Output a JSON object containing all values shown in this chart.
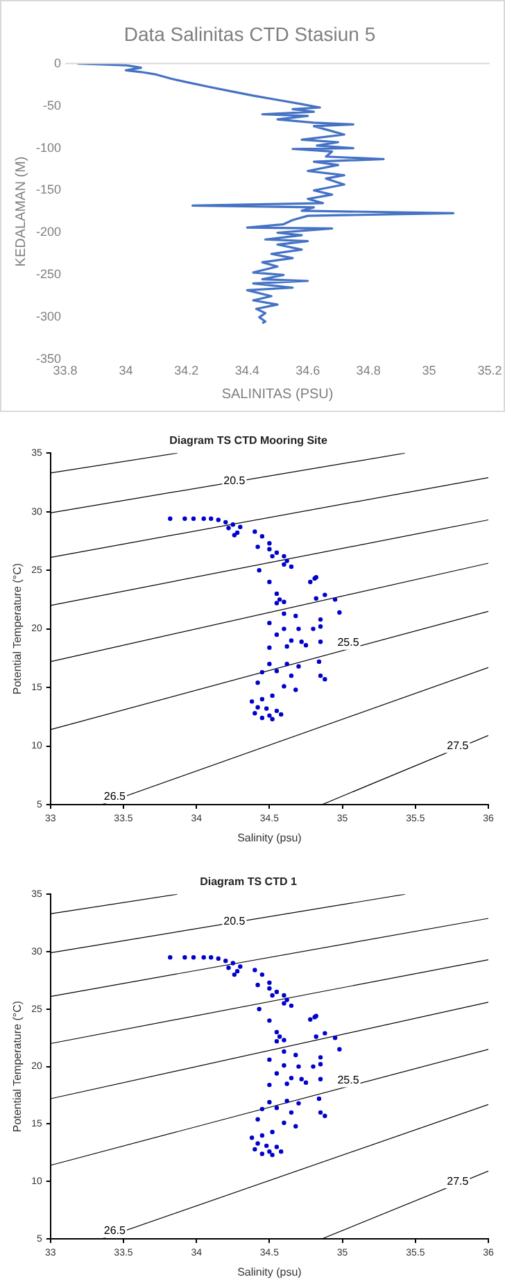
{
  "chart_data": [
    {
      "type": "line",
      "title": "Data Salinitas CTD Stasiun 5",
      "xlabel": "SALINITAS (PSU)",
      "ylabel": "KEDALAMAN (M)",
      "color": "#4472c4",
      "grid": false,
      "legend": false,
      "marker": "none",
      "x": [
        33.84,
        34.0,
        34.05,
        34.0,
        34.05,
        34.1,
        34.15,
        34.2,
        34.28,
        34.35,
        34.42,
        34.5,
        34.58,
        34.64,
        34.55,
        34.62,
        34.45,
        34.6,
        34.5,
        34.62,
        34.75,
        34.62,
        34.68,
        34.72,
        34.58,
        34.7,
        34.63,
        34.75,
        34.55,
        34.68,
        34.66,
        34.85,
        34.62,
        34.7,
        34.6,
        34.72,
        34.66,
        34.72,
        34.62,
        34.68,
        34.6,
        34.65,
        34.22,
        34.62,
        34.58,
        35.08,
        34.6,
        34.55,
        34.52,
        34.4,
        34.68,
        34.5,
        34.58,
        34.46,
        34.6,
        34.5,
        34.58,
        34.48,
        34.55,
        34.45,
        34.5,
        34.42,
        34.52,
        34.45,
        34.6,
        34.42,
        34.55,
        34.4,
        34.48,
        34.42,
        34.5,
        34.43,
        34.46,
        34.44,
        34.46,
        34.45
      ],
      "values": [
        0,
        -2,
        -5,
        -8,
        -10,
        -13,
        -18,
        -22,
        -28,
        -33,
        -38,
        -43,
        -48,
        -52,
        -54,
        -57,
        -60,
        -62,
        -66,
        -70,
        -72,
        -74,
        -80,
        -84,
        -90,
        -93,
        -97,
        -100,
        -101,
        -104,
        -110,
        -113,
        -116,
        -120,
        -127,
        -132,
        -136,
        -143,
        -150,
        -155,
        -160,
        -165,
        -168,
        -170,
        -174,
        -177,
        -180,
        -185,
        -190,
        -194,
        -195,
        -200,
        -203,
        -208,
        -210,
        -214,
        -220,
        -225,
        -230,
        -235,
        -240,
        -247,
        -250,
        -255,
        -257,
        -260,
        -265,
        -268,
        -275,
        -280,
        -285,
        -290,
        -295,
        -300,
        -305,
        -307
      ],
      "xlim": [
        33.8,
        35.2
      ],
      "xticks": [
        33.8,
        34,
        34.2,
        34.4,
        34.6,
        34.8,
        35,
        35.2
      ],
      "ylim": [
        -350,
        0
      ],
      "yticks": [
        -350,
        -300,
        -250,
        -200,
        -150,
        -100,
        -50,
        0
      ],
      "ref_lines": [
        {
          "axis": "y",
          "value": 0,
          "color": "#d9d9d9"
        }
      ]
    },
    {
      "type": "scatter",
      "title": "Diagram TS CTD Mooring Site",
      "xlabel": "Salinity (psu)",
      "ylabel": "Potential Temperature (°C)",
      "grid": false,
      "legend": false,
      "xlim": [
        33,
        36
      ],
      "xticks": [
        33,
        33.5,
        34,
        34.5,
        35,
        35.5,
        36
      ],
      "ylim": [
        5,
        35
      ],
      "yticks": [
        5,
        10,
        15,
        20,
        25,
        30,
        35
      ],
      "series": [
        {
          "type": "scatter",
          "marker": "circle",
          "color": "#0000cc",
          "x": [
            33.82,
            33.92,
            33.98,
            34.05,
            34.1,
            34.15,
            34.2,
            34.25,
            34.3,
            34.22,
            34.28,
            34.26,
            34.4,
            34.45,
            34.5,
            34.42,
            34.5,
            34.55,
            34.52,
            34.6,
            34.62,
            34.65,
            34.6,
            34.43,
            34.5,
            34.82,
            34.78,
            34.81,
            34.55,
            34.57,
            34.55,
            34.6,
            34.82,
            34.88,
            34.95,
            34.98,
            34.6,
            34.68,
            34.5,
            34.85,
            34.85,
            34.6,
            34.7,
            34.8,
            34.55,
            34.65,
            34.72,
            34.75,
            34.85,
            34.5,
            34.62,
            34.84,
            34.5,
            34.62,
            34.7,
            34.45,
            34.55,
            34.65,
            34.85,
            34.88,
            34.42,
            34.6,
            34.68,
            34.52,
            34.45,
            34.38,
            34.42,
            34.48,
            34.55,
            34.4,
            34.5,
            34.58,
            34.45,
            34.52
          ],
          "values": [
            29.4,
            29.4,
            29.4,
            29.4,
            29.4,
            29.3,
            29.1,
            28.9,
            28.7,
            28.6,
            28.2,
            28.0,
            28.3,
            27.9,
            27.3,
            27.0,
            26.8,
            26.5,
            26.2,
            26.2,
            25.8,
            25.3,
            25.5,
            25.0,
            24.0,
            24.4,
            24.0,
            24.3,
            23.0,
            22.5,
            22.2,
            22.3,
            22.6,
            22.9,
            22.5,
            21.4,
            21.3,
            21.1,
            20.5,
            20.8,
            20.2,
            20.0,
            20.0,
            20.0,
            19.5,
            19.0,
            18.9,
            18.6,
            18.9,
            18.4,
            18.5,
            17.2,
            17.0,
            17.0,
            16.8,
            16.3,
            16.4,
            16.0,
            16.0,
            15.7,
            15.4,
            15.1,
            14.8,
            14.3,
            14.0,
            13.8,
            13.3,
            13.2,
            13.0,
            12.8,
            12.6,
            12.7,
            12.4,
            12.3
          ]
        },
        {
          "type": "line",
          "marker": "none",
          "color": "#000000",
          "x": [
            33,
            33.87
          ],
          "values": [
            33.3,
            35
          ]
        },
        {
          "type": "line",
          "marker": "none",
          "color": "#000000",
          "x": [
            33,
            35.43
          ],
          "values": [
            29.9,
            35
          ]
        },
        {
          "type": "line",
          "marker": "none",
          "color": "#000000",
          "x": [
            33,
            36
          ],
          "values": [
            26.1,
            32.9
          ]
        },
        {
          "type": "line",
          "marker": "none",
          "color": "#000000",
          "x": [
            33,
            36
          ],
          "values": [
            22.0,
            29.3
          ]
        },
        {
          "type": "line",
          "marker": "none",
          "color": "#000000",
          "x": [
            33,
            36
          ],
          "values": [
            17.2,
            25.6
          ]
        },
        {
          "type": "line",
          "marker": "none",
          "color": "#000000",
          "x": [
            33,
            36
          ],
          "values": [
            11.4,
            21.5
          ]
        },
        {
          "type": "line",
          "marker": "none",
          "color": "#000000",
          "x": [
            33.35,
            36
          ],
          "values": [
            5,
            16.7
          ]
        },
        {
          "type": "line",
          "marker": "none",
          "color": "#000000",
          "x": [
            34.86,
            36
          ],
          "values": [
            5,
            10.9
          ]
        }
      ],
      "annotations": [
        {
          "text": "20.5",
          "x": 34.26,
          "y": 32.6
        },
        {
          "text": "25.5",
          "x": 35.04,
          "y": 18.8
        },
        {
          "text": "26.5",
          "x": 33.44,
          "y": 5.7
        },
        {
          "text": "27.5",
          "x": 35.79,
          "y": 10.0
        }
      ]
    },
    {
      "type": "scatter",
      "title": "Diagram TS CTD 1",
      "xlabel": "Salinity (psu)",
      "ylabel": "Potential Temperature (°C)",
      "grid": false,
      "legend": false,
      "xlim": [
        33,
        36
      ],
      "xticks": [
        33,
        33.5,
        34,
        34.5,
        35,
        35.5,
        36
      ],
      "ylim": [
        5,
        35
      ],
      "yticks": [
        5,
        10,
        15,
        20,
        25,
        30,
        35
      ],
      "series": [
        {
          "type": "scatter",
          "marker": "circle",
          "color": "#0000cc",
          "x": [
            33.82,
            33.92,
            33.98,
            34.05,
            34.1,
            34.15,
            34.2,
            34.25,
            34.3,
            34.22,
            34.28,
            34.26,
            34.4,
            34.45,
            34.5,
            34.42,
            34.5,
            34.55,
            34.52,
            34.6,
            34.62,
            34.65,
            34.6,
            34.43,
            34.5,
            34.82,
            34.78,
            34.81,
            34.55,
            34.57,
            34.55,
            34.6,
            34.82,
            34.88,
            34.95,
            34.98,
            34.6,
            34.68,
            34.5,
            34.85,
            34.85,
            34.6,
            34.7,
            34.8,
            34.55,
            34.65,
            34.72,
            34.75,
            34.85,
            34.5,
            34.62,
            34.84,
            34.5,
            34.62,
            34.7,
            34.45,
            34.55,
            34.65,
            34.85,
            34.88,
            34.42,
            34.6,
            34.68,
            34.52,
            34.45,
            34.38,
            34.42,
            34.48,
            34.55,
            34.4,
            34.5,
            34.58,
            34.45,
            34.52
          ],
          "values": [
            29.5,
            29.5,
            29.5,
            29.5,
            29.5,
            29.4,
            29.2,
            29.0,
            28.7,
            28.6,
            28.3,
            28.0,
            28.4,
            28.0,
            27.3,
            27.1,
            26.8,
            26.5,
            26.2,
            26.2,
            25.8,
            25.3,
            25.5,
            25.0,
            24.0,
            24.4,
            24.1,
            24.3,
            23.0,
            22.6,
            22.2,
            22.3,
            22.6,
            22.9,
            22.5,
            21.5,
            21.3,
            21.0,
            20.6,
            20.8,
            20.2,
            20.1,
            20.0,
            20.0,
            19.4,
            19.0,
            18.9,
            18.6,
            18.9,
            18.4,
            18.5,
            17.2,
            16.9,
            17.0,
            16.8,
            16.3,
            16.4,
            16.0,
            16.0,
            15.7,
            15.4,
            15.1,
            14.8,
            14.3,
            14.0,
            13.8,
            13.3,
            13.1,
            13.0,
            12.8,
            12.6,
            12.6,
            12.4,
            12.3
          ]
        },
        {
          "type": "line",
          "marker": "none",
          "color": "#000000",
          "x": [
            33,
            33.87
          ],
          "values": [
            33.3,
            35
          ]
        },
        {
          "type": "line",
          "marker": "none",
          "color": "#000000",
          "x": [
            33,
            35.43
          ],
          "values": [
            29.9,
            35
          ]
        },
        {
          "type": "line",
          "marker": "none",
          "color": "#000000",
          "x": [
            33,
            36
          ],
          "values": [
            26.1,
            32.9
          ]
        },
        {
          "type": "line",
          "marker": "none",
          "color": "#000000",
          "x": [
            33,
            36
          ],
          "values": [
            22.0,
            29.3
          ]
        },
        {
          "type": "line",
          "marker": "none",
          "color": "#000000",
          "x": [
            33,
            36
          ],
          "values": [
            17.2,
            25.6
          ]
        },
        {
          "type": "line",
          "marker": "none",
          "color": "#000000",
          "x": [
            33,
            36
          ],
          "values": [
            11.4,
            21.5
          ]
        },
        {
          "type": "line",
          "marker": "none",
          "color": "#000000",
          "x": [
            33.35,
            36
          ],
          "values": [
            5,
            16.7
          ]
        },
        {
          "type": "line",
          "marker": "none",
          "color": "#000000",
          "x": [
            34.86,
            36
          ],
          "values": [
            5,
            10.9
          ]
        }
      ],
      "annotations": [
        {
          "text": "20.5",
          "x": 34.26,
          "y": 32.6
        },
        {
          "text": "25.5",
          "x": 35.04,
          "y": 18.8
        },
        {
          "text": "26.5",
          "x": 33.44,
          "y": 5.7
        },
        {
          "text": "27.5",
          "x": 35.79,
          "y": 10.0
        }
      ]
    }
  ]
}
